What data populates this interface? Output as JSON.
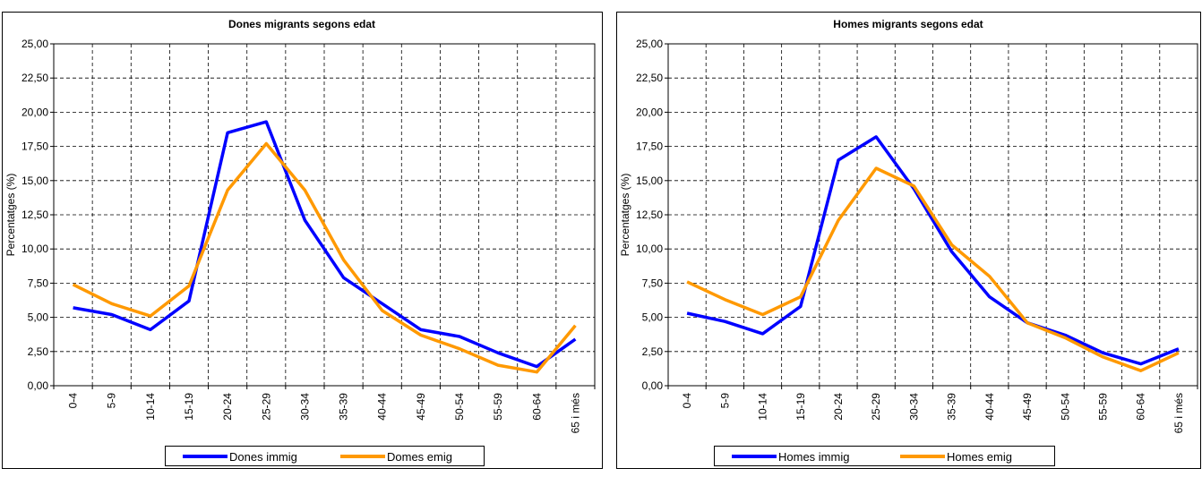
{
  "chart_data": [
    {
      "type": "line",
      "title": "Dones migrants segons edat",
      "ylabel": "Percentatges (%)",
      "xlabel": "",
      "categories": [
        "0-4",
        "5-9",
        "10-14",
        "15-19",
        "20-24",
        "25-29",
        "30-34",
        "35-39",
        "40-44",
        "45-49",
        "50-54",
        "55-59",
        "60-64",
        "65 i més"
      ],
      "ylim": [
        0,
        25
      ],
      "yticks": [
        "0,00",
        "2,50",
        "5,00",
        "7,50",
        "10,00",
        "12,50",
        "15,00",
        "17,50",
        "20,00",
        "22,50",
        "25,00"
      ],
      "grid": true,
      "legend": "bottom",
      "series": [
        {
          "name": "Dones immig",
          "color": "#0000ff",
          "values": [
            5.7,
            5.2,
            4.1,
            6.2,
            18.5,
            19.3,
            12.1,
            7.9,
            6.0,
            4.1,
            3.6,
            2.4,
            1.4,
            3.4
          ]
        },
        {
          "name": "Domes emig",
          "color": "#ff9900",
          "values": [
            7.4,
            6.0,
            5.1,
            7.3,
            14.3,
            17.7,
            14.3,
            9.2,
            5.5,
            3.7,
            2.7,
            1.5,
            1.0,
            4.4
          ]
        }
      ]
    },
    {
      "type": "line",
      "title": "Homes migrants segons edat",
      "ylabel": "Percentatges (%)",
      "xlabel": "",
      "categories": [
        "0-4",
        "5-9",
        "10-14",
        "15-19",
        "20-24",
        "25-29",
        "30-34",
        "35-39",
        "40-44",
        "45-49",
        "50-54",
        "55-59",
        "60-64",
        "65 i més"
      ],
      "ylim": [
        0,
        25
      ],
      "yticks": [
        "0,00",
        "2,50",
        "5,00",
        "7,50",
        "10,00",
        "12,50",
        "15,00",
        "17,50",
        "20,00",
        "22,50",
        "25,00"
      ],
      "grid": true,
      "legend": "bottom",
      "series": [
        {
          "name": "Homes immig",
          "color": "#0000ff",
          "values": [
            5.3,
            4.7,
            3.8,
            5.8,
            16.5,
            18.2,
            14.4,
            9.8,
            6.5,
            4.6,
            3.7,
            2.4,
            1.6,
            2.7
          ]
        },
        {
          "name": "Homes emig",
          "color": "#ff9900",
          "values": [
            7.6,
            6.3,
            5.2,
            6.5,
            12.1,
            15.9,
            14.6,
            10.3,
            8.0,
            4.6,
            3.5,
            2.1,
            1.1,
            2.4
          ]
        }
      ]
    }
  ]
}
